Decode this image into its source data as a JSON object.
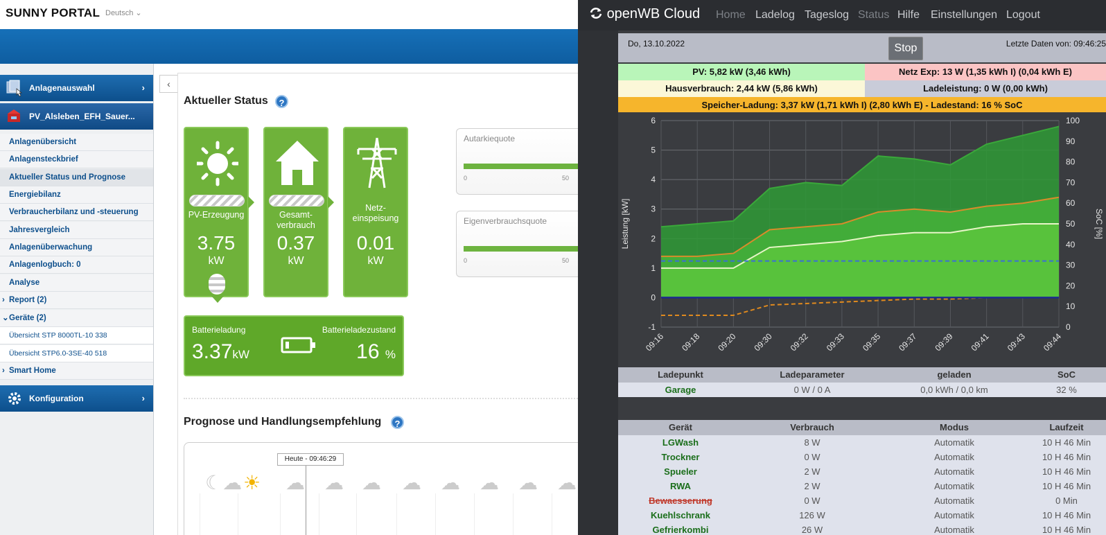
{
  "sunny": {
    "logo": "SUNNY PORTAL",
    "language": "Deutsch",
    "nav": {
      "plant_select": "Anlagenauswahl",
      "plant_name": "PV_Alsleben_EFH_Sauer...",
      "items": [
        {
          "label": "Anlagenübersicht"
        },
        {
          "label": "Anlagensteckbrief"
        },
        {
          "label": "Aktueller Status und Prognose"
        },
        {
          "label": "Energiebilanz"
        },
        {
          "label": "Verbraucherbilanz und -steuerung"
        },
        {
          "label": "Jahresvergleich"
        },
        {
          "label": "Anlagenüberwachung"
        },
        {
          "label": "Anlagenlogbuch: 0"
        },
        {
          "label": "Analyse"
        },
        {
          "label": "Report (2)"
        },
        {
          "label": "Geräte (2)"
        },
        {
          "label": "Übersicht STP 8000TL-10 338"
        },
        {
          "label": "Übersicht STP6.0-3SE-40 518"
        },
        {
          "label": "Smart Home"
        }
      ],
      "config": "Konfiguration"
    },
    "status_title": "Aktueller Status",
    "tiles": [
      {
        "label": "PV-Erzeugung",
        "value": "3.75",
        "unit": "kW"
      },
      {
        "label": "Gesamt-\nverbrauch",
        "value": "0.37",
        "unit": "kW"
      },
      {
        "label": "Netz-\neinspeisung",
        "value": "0.01",
        "unit": "kW"
      }
    ],
    "battery": {
      "charge_label": "Batterieladung",
      "charge_value": "3.37",
      "charge_unit": "kW",
      "soc_label": "Batterieladezustand",
      "soc_value": "16",
      "soc_unit": "%"
    },
    "gauges": [
      {
        "title": "Autarkiequote",
        "tick0": "0",
        "tick50": "50"
      },
      {
        "title": "Eigenverbrauchsquote",
        "tick0": "0",
        "tick50": "50"
      }
    ],
    "forecast_title": "Prognose und Handlungsempfehlung",
    "forecast_tooltip": "Heute - 09:46:29",
    "help": "?"
  },
  "openwb": {
    "brand": "openWB Cloud",
    "menu": [
      "Home",
      "Ladelog",
      "Tageslog",
      "Status",
      "Hilfe",
      "Einstellungen",
      "Logout"
    ],
    "date": "Do, 13.10.2022",
    "stop": "Stop",
    "last_data": "Letzte Daten von: 09:46:25",
    "colors": {
      "pv_bg": "#b9f5b9",
      "grid_bg": "#fbc4c4",
      "house_bg": "#fbf7d8",
      "charge_bg": "#c9ccd9",
      "battery_bg": "#f6b52c"
    },
    "summary": {
      "pv": "PV: 5,82 kW (3,46 kWh)",
      "grid": "Netz Exp: 13 W (1,35 kWh I) (0,04 kWh E)",
      "house": "Hausverbrauch: 2,44 kW (5,86 kWh)",
      "charge": "Ladeleistung: 0 W (0,00 kWh)",
      "battery": "Speicher-Ladung: 3,37 kW (1,71 kWh I) (2,80 kWh E)  - Ladestand: 16 % SoC"
    },
    "chart_labels": {
      "ylabel_left": "Leistung [kW]",
      "ylabel_right": "SoC [%]"
    },
    "chart_data": {
      "type": "area",
      "x": [
        "09:16",
        "09:18",
        "09:20",
        "09:30",
        "09:32",
        "09:33",
        "09:35",
        "09:37",
        "09:39",
        "09:41",
        "09:43",
        "09:44"
      ],
      "ylim": [
        -1,
        6
      ],
      "y2lim": [
        0,
        100
      ],
      "yticks": [
        -1,
        0,
        1,
        2,
        3,
        4,
        5,
        6
      ],
      "y2ticks": [
        0,
        10,
        20,
        30,
        40,
        50,
        60,
        70,
        80,
        90,
        100
      ],
      "series": [
        {
          "color": "#3aa83a",
          "values": [
            2.4,
            2.5,
            2.6,
            3.7,
            3.9,
            3.8,
            4.8,
            4.7,
            4.5,
            5.2,
            5.5,
            5.8
          ]
        },
        {
          "color": "#d98b2b",
          "values": [
            1.4,
            1.4,
            1.5,
            2.3,
            2.4,
            2.5,
            2.9,
            3.0,
            2.9,
            3.1,
            3.2,
            3.4
          ]
        },
        {
          "color": "#e8f5c8",
          "values": [
            1.0,
            1.0,
            1.0,
            1.7,
            1.8,
            1.9,
            2.1,
            2.2,
            2.2,
            2.4,
            2.5,
            2.5
          ]
        },
        {
          "color": "#3b6fd6",
          "axis": "right",
          "dashed": true,
          "values": [
            32,
            32,
            32,
            32,
            32,
            32,
            32,
            32,
            32,
            32,
            32,
            32
          ]
        },
        {
          "color": "#e08a1e",
          "dashed": true,
          "values": [
            -0.6,
            -0.6,
            -0.6,
            -0.25,
            -0.2,
            -0.15,
            -0.1,
            -0.05,
            -0.05,
            0.0,
            0.0,
            0.0
          ]
        }
      ]
    },
    "lp_table": {
      "headers": [
        "Ladepunkt",
        "Ladeparameter",
        "geladen",
        "SoC"
      ],
      "rows": [
        [
          "Garage",
          "0 W / 0 A",
          "0,0 kWh / 0,0 km",
          "32 %"
        ]
      ]
    },
    "dev_table": {
      "headers": [
        "Gerät",
        "Verbrauch",
        "Modus",
        "Laufzeit"
      ],
      "rows": [
        [
          "LGWash",
          "8 W",
          "Automatik",
          "10 H 46 Min"
        ],
        [
          "Trockner",
          "0 W",
          "Automatik",
          "10 H 46 Min"
        ],
        [
          "Spueler",
          "2 W",
          "Automatik",
          "10 H 46 Min"
        ],
        [
          "RWA",
          "2 W",
          "Automatik",
          "10 H 46 Min"
        ],
        [
          "Bewaesserung",
          "0 W",
          "Automatik",
          "0 Min"
        ],
        [
          "Kuehlschrank",
          "126 W",
          "Automatik",
          "10 H 46 Min"
        ],
        [
          "Gefrierkombi",
          "26 W",
          "Automatik",
          "10 H 46 Min"
        ]
      ]
    }
  }
}
